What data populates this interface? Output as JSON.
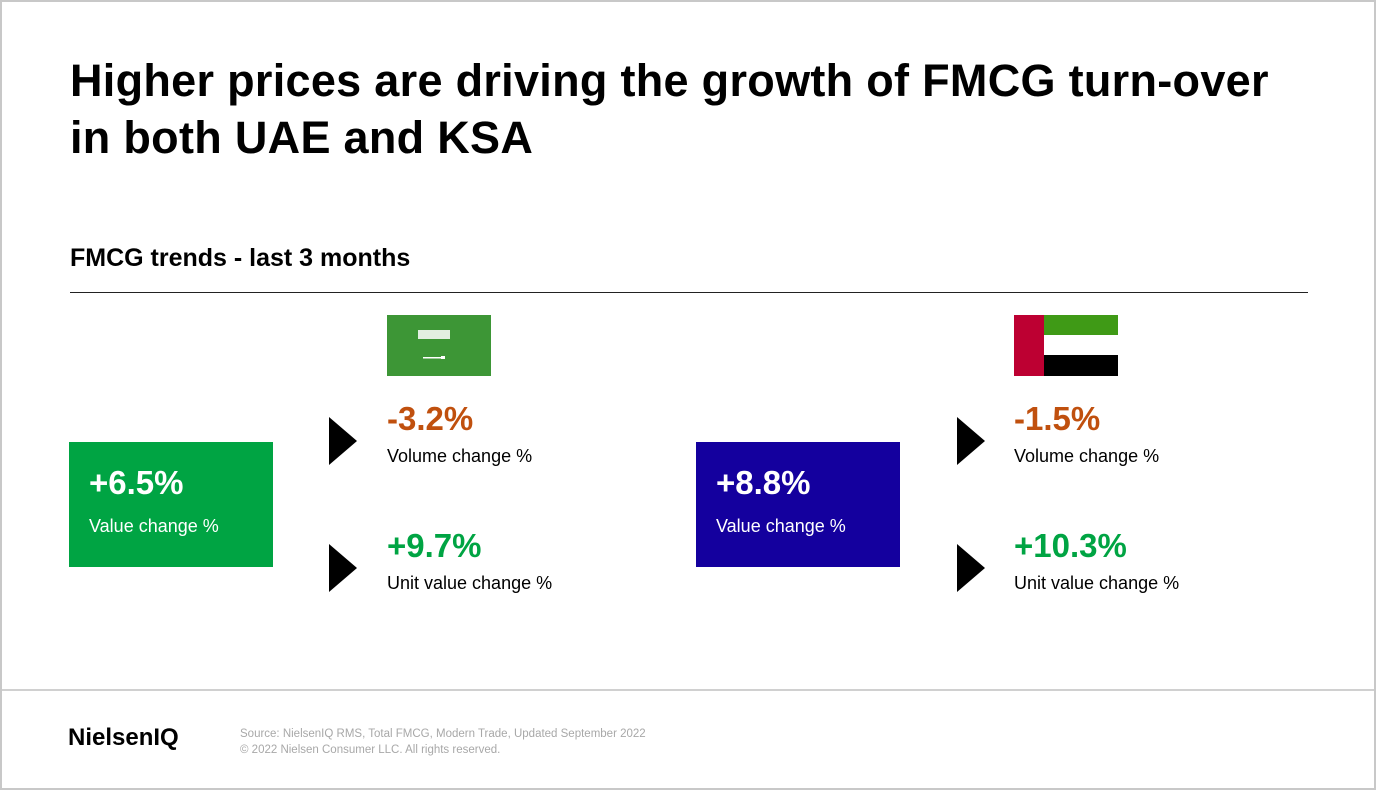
{
  "title": "Higher prices are driving the growth of FMCG turn-over in both UAE and KSA",
  "subtitle": "FMCG trends - last 3 months",
  "colors": {
    "ksa_box": "#00A443",
    "uae_box": "#14009E",
    "negative": "#C0500E",
    "positive": "#00A443"
  },
  "ksa": {
    "flag": "saudi-arabia-flag",
    "value": "+6.5%",
    "value_label": "Value change %",
    "volume": "-3.2%",
    "volume_label": "Volume change %",
    "unit": "+9.7%",
    "unit_label": "Unit value change %"
  },
  "uae": {
    "flag": "uae-flag",
    "value": "+8.8%",
    "value_label": "Value change %",
    "volume": "-1.5%",
    "volume_label": "Volume change %",
    "unit": "+10.3%",
    "unit_label": "Unit value change %"
  },
  "footer": {
    "logo": "NielsenIQ",
    "source": "Source: NielsenIQ RMS, Total FMCG, Modern Trade, Updated September 2022",
    "copyright": "© 2022 Nielsen Consumer LLC. All rights reserved."
  }
}
